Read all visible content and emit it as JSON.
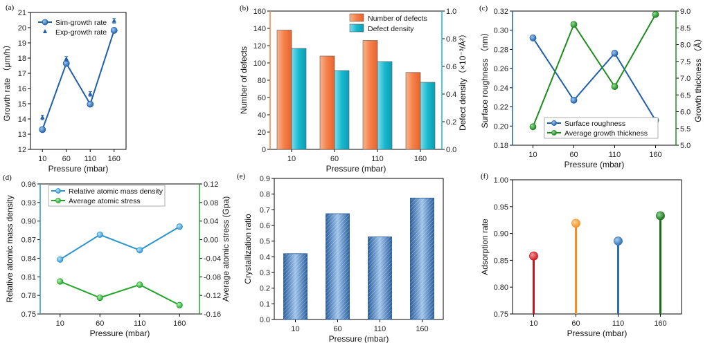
{
  "colors": {
    "blue": "#1f5fa8",
    "orange": "#f47f4a",
    "cyan": "#17b9cf",
    "green": "#1e8c1e",
    "lightblue": "#2a95cf",
    "lightgreen": "#21a52a",
    "stem_red": "#c8141c",
    "stem_orange": "#f5901e",
    "stem_blue": "#2a6fb0",
    "stem_green": "#1a6e1a",
    "bar_fill": "#5b9bd5"
  },
  "chart_data": [
    {
      "panel": "(a)",
      "type": "line",
      "categories": [
        "10",
        "60",
        "110",
        "160"
      ],
      "xlabel": "Pressure (mbar)",
      "ylabel": "Growth rate （μm/h）",
      "ylim": [
        12,
        21
      ],
      "yticks": [
        "12",
        "13",
        "14",
        "15",
        "16",
        "17",
        "18",
        "19",
        "20",
        "21"
      ],
      "series": [
        {
          "name": "Sim-growth rate",
          "values": [
            13.3,
            17.65,
            14.97,
            19.82
          ],
          "marker": "circle",
          "line": true
        },
        {
          "name": "Exp-growth rate",
          "values": [
            14.1,
            17.95,
            15.65,
            20.45
          ],
          "err": [
            0.15,
            0.15,
            0.15,
            0.15
          ],
          "marker": "triangle",
          "line": false
        }
      ],
      "legend": "top-left"
    },
    {
      "panel": "(b)",
      "type": "bar",
      "categories": [
        "10",
        "60",
        "110",
        "160"
      ],
      "xlabel": "Pressure (mbar)",
      "ylabel": "Number of defects",
      "ylabel_right": "Defect density（×10⁻³/Å²）",
      "ylim": [
        0,
        160
      ],
      "yticks": [
        "0",
        "20",
        "40",
        "60",
        "80",
        "100",
        "120",
        "140",
        "160"
      ],
      "ylim_right": [
        0,
        1.0
      ],
      "yticks_right": [
        "0.0",
        "0.2",
        "0.4",
        "0.6",
        "0.8",
        "1.0"
      ],
      "series": [
        {
          "name": "Number of defects",
          "values": [
            138,
            108,
            126,
            89
          ],
          "axis": "left"
        },
        {
          "name": "Defect density",
          "values": [
            0.73,
            0.57,
            0.635,
            0.485
          ],
          "axis": "right"
        }
      ],
      "legend": "top-right"
    },
    {
      "panel": "(c)",
      "type": "line",
      "categories": [
        "10",
        "60",
        "110",
        "160"
      ],
      "xlabel": "Pressure (mbar)",
      "ylabel": "Surface roughness （nm）",
      "ylabel_right": "Growth thickness （Å）",
      "ylim": [
        0.18,
        0.32
      ],
      "yticks": [
        "0.18",
        "0.20",
        "0.22",
        "0.24",
        "0.26",
        "0.28",
        "0.30",
        "0.32"
      ],
      "ylim_right": [
        5.0,
        9.0
      ],
      "yticks_right": [
        "5.0",
        "5.5",
        "6.0",
        "6.5",
        "7.0",
        "7.5",
        "8.0",
        "8.5",
        "9.0"
      ],
      "series": [
        {
          "name": "Surface roughness",
          "values": [
            0.292,
            0.227,
            0.276,
            0.206
          ],
          "axis": "left"
        },
        {
          "name": "Average growth thickness",
          "values": [
            5.55,
            8.6,
            6.75,
            8.9
          ],
          "axis": "right"
        }
      ],
      "legend": "bottom-right"
    },
    {
      "panel": "(d)",
      "type": "line",
      "categories": [
        "10",
        "60",
        "110",
        "160"
      ],
      "xlabel": "Pressure (mbar)",
      "ylabel": "Relative atomic mass density",
      "ylabel_right": "Average atomic stress (Gpa)",
      "ylim": [
        0.75,
        0.96
      ],
      "yticks": [
        "0.75",
        "0.78",
        "0.81",
        "0.84",
        "0.87",
        "0.90",
        "0.93",
        "0.96"
      ],
      "ylim_right": [
        -0.16,
        0.12
      ],
      "yticks_right": [
        "-0.16",
        "-0.12",
        "-0.08",
        "-0.04",
        "0.00",
        "0.04",
        "0.08",
        "0.12"
      ],
      "series": [
        {
          "name": "Relative atomic mass density",
          "values": [
            0.838,
            0.878,
            0.853,
            0.891
          ],
          "axis": "left"
        },
        {
          "name": "Average atomic stress",
          "values": [
            -0.09,
            -0.125,
            -0.097,
            -0.141
          ],
          "axis": "right"
        }
      ],
      "legend": "top-left"
    },
    {
      "panel": "(e)",
      "type": "bar",
      "categories": [
        "10",
        "60",
        "110",
        "160"
      ],
      "xlabel": "Pressure (mbar)",
      "ylabel": "Crystallization ratio",
      "ylim": [
        0.0,
        0.9
      ],
      "yticks": [
        "0.0",
        "0.1",
        "0.2",
        "0.3",
        "0.4",
        "0.5",
        "0.6",
        "0.7",
        "0.8",
        "0.9"
      ],
      "series": [
        {
          "values": [
            0.42,
            0.675,
            0.527,
            0.775
          ]
        }
      ]
    },
    {
      "panel": "(f)",
      "type": "stem",
      "categories": [
        "10",
        "60",
        "110",
        "160"
      ],
      "xlabel": "Pressure (mbar)",
      "ylabel": "Adsorption rate",
      "ylim": [
        0.75,
        1.0
      ],
      "yticks": [
        "0.75",
        "0.80",
        "0.85",
        "0.90",
        "0.95",
        "1.00"
      ],
      "series": [
        {
          "values": [
            0.858,
            0.919,
            0.886,
            0.933
          ]
        }
      ]
    }
  ]
}
